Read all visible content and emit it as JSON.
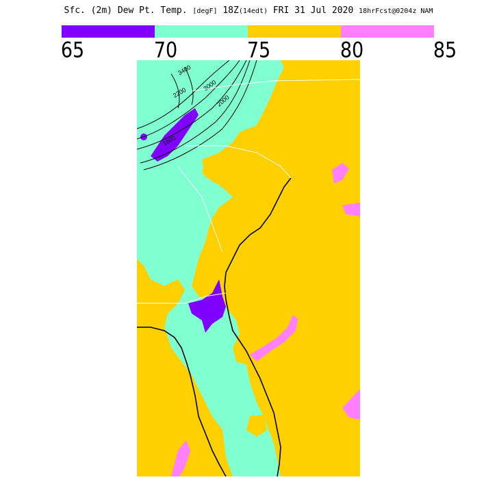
{
  "header": {
    "title_main": "Sfc. (2m) Dew Pt. Temp. ",
    "title_unit": "[degF]",
    "title_time": " 18Z",
    "title_edt": "(14edt)",
    "title_date": " FRI 31 Jul 2020 ",
    "title_fcst": "18hrFcst@0204z",
    "title_model": " NAM"
  },
  "legend": {
    "bins": [
      {
        "color": "#8000ff",
        "range": [
          65,
          70
        ]
      },
      {
        "color": "#80ffd0",
        "range": [
          70,
          75
        ]
      },
      {
        "color": "#ffd000",
        "range": [
          75,
          80
        ]
      },
      {
        "color": "#ff80ff",
        "range": [
          80,
          85
        ]
      }
    ],
    "tick_labels": [
      "65",
      "70",
      "75",
      "80",
      "85"
    ]
  },
  "map": {
    "colors": {
      "dewpoint_65_70": "#8000ff",
      "dewpoint_70_75": "#80ffd0",
      "dewpoint_75_80": "#ffd000",
      "dewpoint_80_85": "#ff80ff",
      "coastline": "#000000",
      "borders": "#ffffff"
    },
    "contour_labels": [
      "3400",
      "3000",
      "2200",
      "2000",
      "1600"
    ]
  }
}
